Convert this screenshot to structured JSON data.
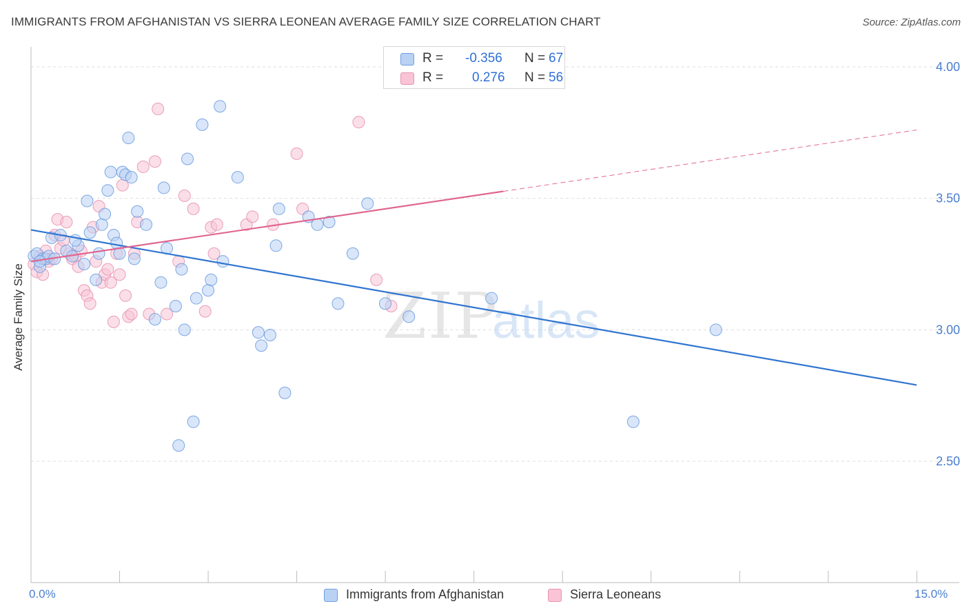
{
  "title": "IMMIGRANTS FROM AFGHANISTAN VS SIERRA LEONEAN AVERAGE FAMILY SIZE CORRELATION CHART",
  "source": "Source: ZipAtlas.com",
  "watermark": {
    "zip": "ZIP",
    "atlas": "atlas"
  },
  "legend": {
    "rows": [
      {
        "r_label": "R =",
        "r_value": "-0.356",
        "n_label": "N =",
        "n_value": "67",
        "fill": "#b9d2f4",
        "stroke": "#6e9de0"
      },
      {
        "r_label": "R =",
        "r_value": "0.276",
        "n_label": "N =",
        "n_value": "56",
        "fill": "#f8c4d6",
        "stroke": "#e892b0"
      }
    ]
  },
  "bottom_legend": [
    {
      "label": "Immigrants from Afghanistan",
      "fill": "#b9d2f4",
      "stroke": "#6e9de0"
    },
    {
      "label": "Sierra Leoneans",
      "fill": "#f8c4d6",
      "stroke": "#e892b0"
    }
  ],
  "colors": {
    "blue_line": "#2f74d0",
    "pink_line": "#e0668f",
    "axis_text": "#4a7fd0",
    "grid": "#dddddd"
  },
  "chart_data": {
    "type": "scatter",
    "title": "IMMIGRANTS FROM AFGHANISTAN VS SIERRA LEONEAN AVERAGE FAMILY SIZE CORRELATION CHART",
    "xlabel": "",
    "ylabel": "Average Family Size",
    "xlim": [
      0,
      15
    ],
    "ylim": [
      2.0,
      4.1
    ],
    "x_tick_labels": [
      "0.0%",
      "15.0%"
    ],
    "y_ticks": [
      2.5,
      3.0,
      3.5,
      4.0
    ],
    "y_tick_labels": [
      "2.50",
      "3.00",
      "3.50",
      "4.00"
    ],
    "grid": true,
    "legend_position": "top-center",
    "series": [
      {
        "name": "Immigrants from Afghanistan",
        "color": "#6e9de0",
        "fill": "#b9d2f4",
        "trend": {
          "x": [
            0.0,
            15.0
          ],
          "y": [
            3.38,
            2.79
          ],
          "dashed_from": null
        },
        "points": [
          [
            0.05,
            3.28
          ],
          [
            0.1,
            3.29
          ],
          [
            0.15,
            3.24
          ],
          [
            0.2,
            3.27
          ],
          [
            0.25,
            3.27
          ],
          [
            0.3,
            3.28
          ],
          [
            0.35,
            3.35
          ],
          [
            0.5,
            3.36
          ],
          [
            0.6,
            3.3
          ],
          [
            0.7,
            3.28
          ],
          [
            0.8,
            3.32
          ],
          [
            0.9,
            3.25
          ],
          [
            0.95,
            3.49
          ],
          [
            1.0,
            3.37
          ],
          [
            1.1,
            3.19
          ],
          [
            1.15,
            3.29
          ],
          [
            1.2,
            3.4
          ],
          [
            1.25,
            3.44
          ],
          [
            1.3,
            3.53
          ],
          [
            1.35,
            3.6
          ],
          [
            1.4,
            3.36
          ],
          [
            1.45,
            3.33
          ],
          [
            1.55,
            3.6
          ],
          [
            1.6,
            3.59
          ],
          [
            1.65,
            3.73
          ],
          [
            1.7,
            3.58
          ],
          [
            1.75,
            3.27
          ],
          [
            1.8,
            3.45
          ],
          [
            1.95,
            3.4
          ],
          [
            2.1,
            3.04
          ],
          [
            2.2,
            3.18
          ],
          [
            2.25,
            3.54
          ],
          [
            2.3,
            3.31
          ],
          [
            2.45,
            3.09
          ],
          [
            2.5,
            2.56
          ],
          [
            2.55,
            3.23
          ],
          [
            2.6,
            3.0
          ],
          [
            2.65,
            3.65
          ],
          [
            2.75,
            2.65
          ],
          [
            2.8,
            3.12
          ],
          [
            2.9,
            3.78
          ],
          [
            3.0,
            3.15
          ],
          [
            3.05,
            3.19
          ],
          [
            3.2,
            3.85
          ],
          [
            3.25,
            3.26
          ],
          [
            3.5,
            3.58
          ],
          [
            3.85,
            2.99
          ],
          [
            3.9,
            2.94
          ],
          [
            4.05,
            2.98
          ],
          [
            4.15,
            3.32
          ],
          [
            4.2,
            3.46
          ],
          [
            4.3,
            2.76
          ],
          [
            4.7,
            3.43
          ],
          [
            4.85,
            3.4
          ],
          [
            5.05,
            3.41
          ],
          [
            5.2,
            3.1
          ],
          [
            5.45,
            3.29
          ],
          [
            5.7,
            3.48
          ],
          [
            6.0,
            3.1
          ],
          [
            6.4,
            3.05
          ],
          [
            7.8,
            3.12
          ],
          [
            10.2,
            2.65
          ],
          [
            11.6,
            3.0
          ],
          [
            0.15,
            3.26
          ],
          [
            0.4,
            3.27
          ],
          [
            0.75,
            3.34
          ],
          [
            1.5,
            3.29
          ]
        ]
      },
      {
        "name": "Sierra Leoneans",
        "color": "#e892b0",
        "fill": "#f8c4d6",
        "trend": {
          "x": [
            0.0,
            15.0
          ],
          "y": [
            3.26,
            3.76
          ],
          "dashed_from": 8.0
        },
        "points": [
          [
            0.05,
            3.25
          ],
          [
            0.1,
            3.22
          ],
          [
            0.15,
            3.28
          ],
          [
            0.2,
            3.21
          ],
          [
            0.25,
            3.3
          ],
          [
            0.3,
            3.26
          ],
          [
            0.35,
            3.27
          ],
          [
            0.4,
            3.36
          ],
          [
            0.45,
            3.42
          ],
          [
            0.5,
            3.31
          ],
          [
            0.55,
            3.34
          ],
          [
            0.6,
            3.41
          ],
          [
            0.65,
            3.29
          ],
          [
            0.7,
            3.27
          ],
          [
            0.75,
            3.28
          ],
          [
            0.8,
            3.24
          ],
          [
            0.85,
            3.3
          ],
          [
            0.9,
            3.15
          ],
          [
            0.95,
            3.13
          ],
          [
            1.0,
            3.1
          ],
          [
            1.05,
            3.39
          ],
          [
            1.1,
            3.26
          ],
          [
            1.15,
            3.47
          ],
          [
            1.2,
            3.18
          ],
          [
            1.25,
            3.21
          ],
          [
            1.3,
            3.23
          ],
          [
            1.35,
            3.18
          ],
          [
            1.4,
            3.03
          ],
          [
            1.45,
            3.29
          ],
          [
            1.5,
            3.21
          ],
          [
            1.55,
            3.55
          ],
          [
            1.6,
            3.13
          ],
          [
            1.65,
            3.05
          ],
          [
            1.7,
            3.06
          ],
          [
            1.75,
            3.29
          ],
          [
            1.8,
            3.41
          ],
          [
            1.9,
            3.62
          ],
          [
            2.0,
            3.06
          ],
          [
            2.1,
            3.64
          ],
          [
            2.15,
            3.84
          ],
          [
            2.3,
            3.06
          ],
          [
            2.5,
            3.26
          ],
          [
            2.6,
            3.51
          ],
          [
            2.75,
            3.46
          ],
          [
            2.95,
            3.07
          ],
          [
            3.05,
            3.39
          ],
          [
            3.1,
            3.29
          ],
          [
            3.15,
            3.4
          ],
          [
            3.65,
            3.4
          ],
          [
            3.75,
            3.43
          ],
          [
            4.1,
            3.4
          ],
          [
            4.5,
            3.67
          ],
          [
            4.6,
            3.46
          ],
          [
            5.55,
            3.79
          ],
          [
            5.85,
            3.19
          ],
          [
            6.1,
            3.09
          ]
        ]
      }
    ]
  }
}
